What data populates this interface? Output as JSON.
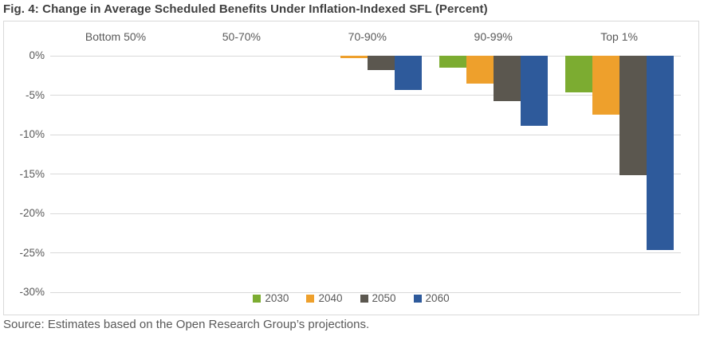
{
  "title": "Fig. 4: Change in Average Scheduled Benefits Under Inflation-Indexed SFL (Percent)",
  "source": "Source: Estimates based on the Open Research Group’s projections.",
  "colors": {
    "grid": "#d9d9d9",
    "label_text": "#595959",
    "title_text": "#3f3f3f",
    "series_2030": "#7cac31",
    "series_2040": "#eea02c",
    "series_2050": "#5b574f",
    "series_2060": "#2e5a9b"
  },
  "chart_data": {
    "type": "bar",
    "title": "Fig. 4: Change in Average Scheduled Benefits Under Inflation-Indexed SFL (Percent)",
    "categories": [
      "Bottom 50%",
      "50-70%",
      "70-90%",
      "90-99%",
      "Top 1%"
    ],
    "series": [
      {
        "name": "2030",
        "color": "#7cac31",
        "values": [
          0,
          0,
          0,
          -1.5,
          -4.6
        ]
      },
      {
        "name": "2040",
        "color": "#eea02c",
        "values": [
          0,
          0,
          -0.3,
          -3.5,
          -7.5
        ]
      },
      {
        "name": "2050",
        "color": "#5b574f",
        "values": [
          0,
          0,
          -1.8,
          -5.8,
          -15.2
        ]
      },
      {
        "name": "2060",
        "color": "#2e5a9b",
        "values": [
          0,
          0,
          -4.3,
          -8.9,
          -24.6
        ]
      }
    ],
    "xlabel": "",
    "ylabel": "",
    "y_ticks": [
      "0%",
      "-5%",
      "-10%",
      "-15%",
      "-20%",
      "-25%",
      "-30%"
    ],
    "ylim": [
      -30,
      0
    ],
    "y_tick_step": 5,
    "grid": true,
    "legend_position": "bottom",
    "category_labels_position": "top"
  }
}
